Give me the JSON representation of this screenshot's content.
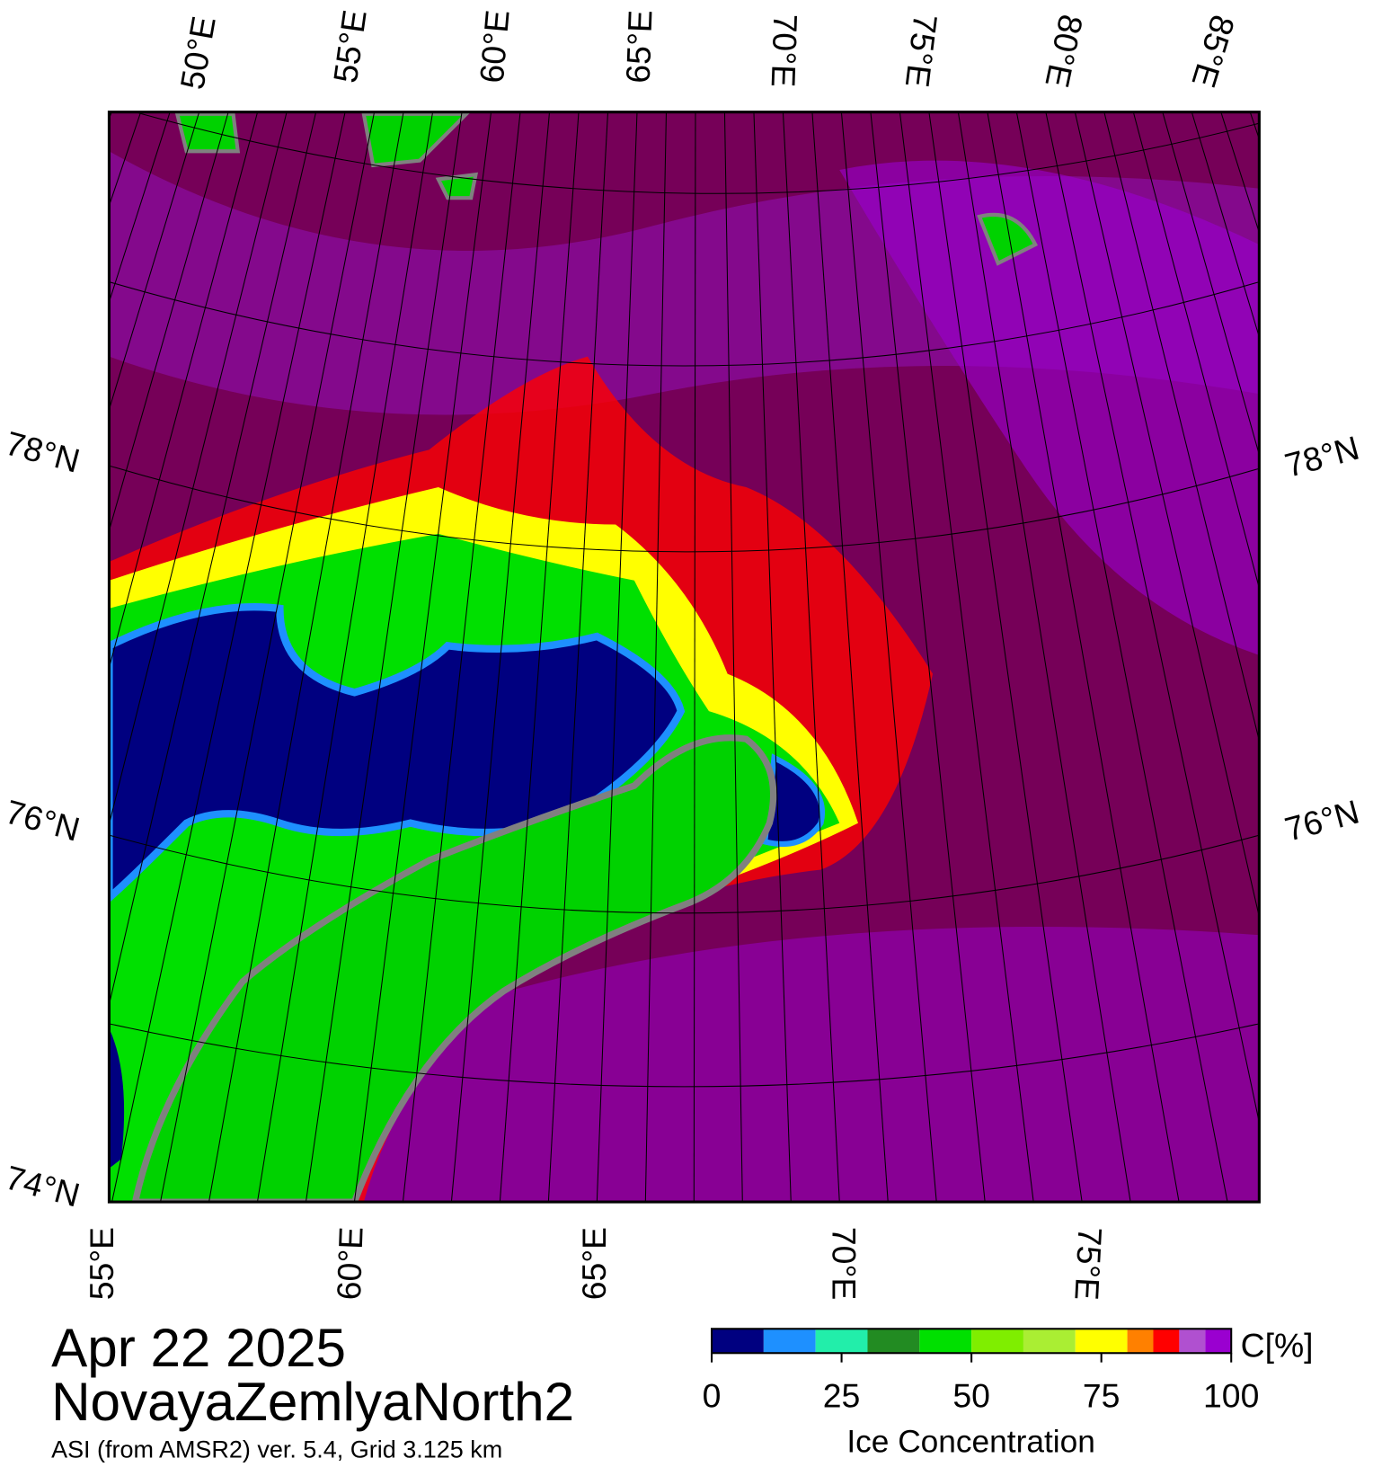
{
  "map": {
    "top_lon_labels": [
      "50°E",
      "55°E",
      "60°E",
      "65°E",
      "70°E",
      "75°E",
      "80°E",
      "85°E"
    ],
    "bottom_lon_labels": [
      "55°E",
      "60°E",
      "65°E",
      "70°E",
      "75°E"
    ],
    "left_lat_labels": [
      "78°N",
      "76°N",
      "74°N"
    ],
    "right_lat_labels": [
      "78°N",
      "76°N"
    ]
  },
  "footer": {
    "date": "Apr 22 2025",
    "region": "NovayaZemlyaNorth2",
    "source": "ASI (from AMSR2) ver. 5.4,  Grid 3.125 km"
  },
  "colorbar": {
    "label": "Ice Concentration",
    "unit": "C[%]",
    "ticks": [
      0,
      25,
      50,
      75,
      100
    ],
    "bins": [
      0,
      10,
      20,
      30,
      40,
      50,
      60,
      70,
      80,
      85,
      90,
      95,
      100
    ],
    "colors": [
      "#000080",
      "#1e90ff",
      "#22eeaa",
      "#228b22",
      "#00e000",
      "#7fee00",
      "#aaee33",
      "#ffff00",
      "#ff8000",
      "#ff0000",
      "#b050d0",
      "#9a00d0"
    ]
  }
}
